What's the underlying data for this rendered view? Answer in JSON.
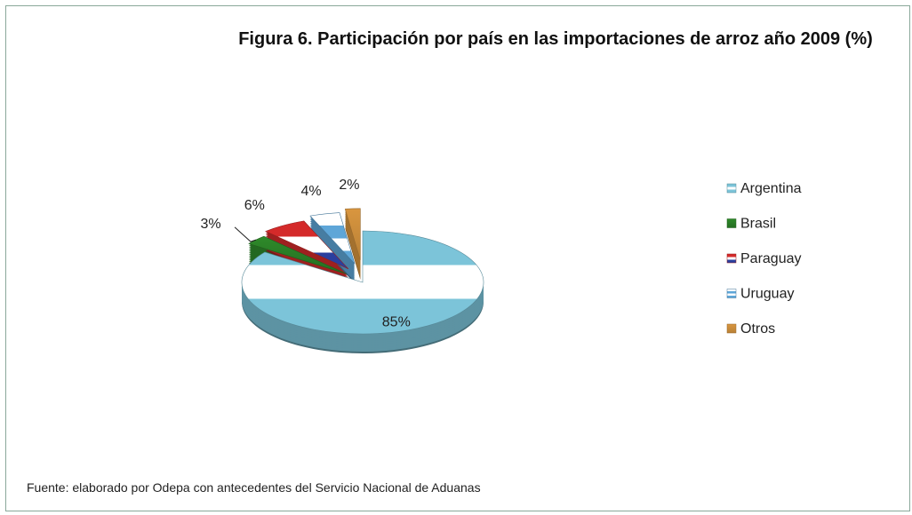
{
  "chart_data": {
    "type": "pie",
    "title": "Figura 6. Participación por país en las importaciones de arroz año 2009 (%)",
    "categories": [
      "Argentina",
      "Brasil",
      "Paraguay",
      "Uruguay",
      "Otros"
    ],
    "values": [
      85,
      3,
      6,
      4,
      2
    ],
    "value_labels": [
      "85%",
      "3%",
      "6%",
      "4%",
      "2%"
    ],
    "colors": [
      "#7cc4d9",
      "#2e8a2a",
      "#d42a2a",
      "#5ea6d8",
      "#d9963f"
    ],
    "legend": "right",
    "note": "Fuente: elaborado por Odepa con antecedentes del Servicio Nacional de Aduanas"
  }
}
